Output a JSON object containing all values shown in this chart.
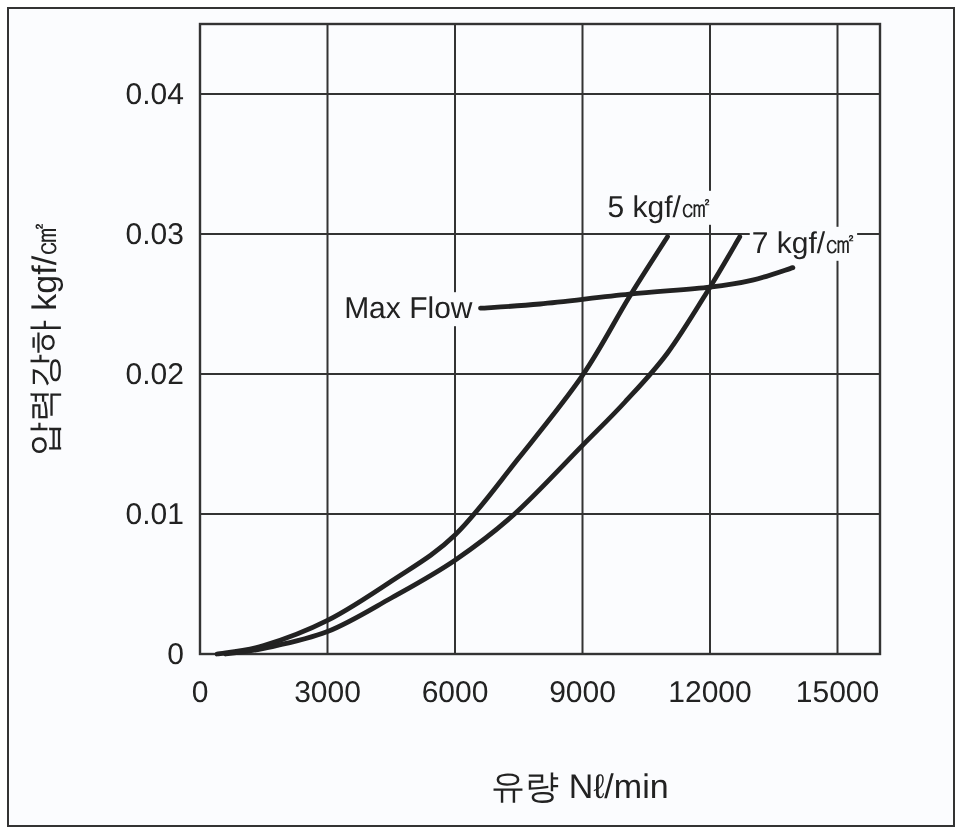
{
  "chart_data": {
    "type": "line",
    "xlabel": "유량 Nℓ/min",
    "ylabel": "압력강하 kgf/㎠",
    "xlim": [
      0,
      16000
    ],
    "ylim": [
      0,
      0.045
    ],
    "xticks": [
      0,
      3000,
      6000,
      9000,
      12000,
      15000
    ],
    "yticks": [
      0,
      0.01,
      0.02,
      0.03,
      0.04
    ],
    "grid": true,
    "marker": "none",
    "line_style": "solid",
    "series": [
      {
        "name": "5 kgf/㎠",
        "color": "#222222",
        "x": [
          400,
          1500,
          3000,
          4500,
          6000,
          7500,
          9000,
          10100,
          11000
        ],
        "values": [
          0,
          0.0006,
          0.0024,
          0.0052,
          0.0085,
          0.014,
          0.0199,
          0.0255,
          0.0298
        ]
      },
      {
        "name": "7 kgf/㎠",
        "color": "#222222",
        "x": [
          600,
          1500,
          3000,
          4500,
          6000,
          7400,
          9000,
          10000,
          11000,
          12000,
          12700
        ],
        "values": [
          0,
          0.0004,
          0.0016,
          0.004,
          0.0067,
          0.01,
          0.0149,
          0.018,
          0.0215,
          0.0262,
          0.0298
        ]
      },
      {
        "name": "Max Flow",
        "color": "#222222",
        "x": [
          6600,
          8000,
          10100,
          12000,
          13000,
          13950
        ],
        "values": [
          0.0247,
          0.025,
          0.0257,
          0.0262,
          0.0267,
          0.0276
        ]
      }
    ]
  }
}
